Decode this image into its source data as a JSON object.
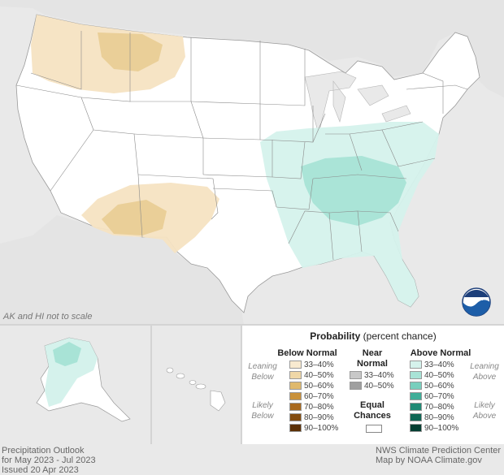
{
  "scale_note": "AK and HI not to scale",
  "legend": {
    "title_bold": "Probability",
    "title_rest": " (percent chance)",
    "below_header": "Below Normal",
    "near_header_1": "Near",
    "near_header_2": "Normal",
    "above_header": "Above Normal",
    "leaning_below_1": "Leaning",
    "leaning_below_2": "Below",
    "likely_below_1": "Likely",
    "likely_below_2": "Below",
    "leaning_above_1": "Leaning",
    "leaning_above_2": "Above",
    "likely_above_1": "Likely",
    "likely_above_2": "Above",
    "equal_1": "Equal",
    "equal_2": "Chances",
    "below": [
      {
        "label": "33–40%",
        "color": "#f8ead0"
      },
      {
        "label": "40–50%",
        "color": "#efd7a7"
      },
      {
        "label": "50–60%",
        "color": "#dfb96c"
      },
      {
        "label": "60–70%",
        "color": "#c9913a"
      },
      {
        "label": "70–80%",
        "color": "#a8691e"
      },
      {
        "label": "80–90%",
        "color": "#834c0f"
      },
      {
        "label": "90–100%",
        "color": "#5b3006"
      }
    ],
    "near": [
      {
        "label": "33–40%",
        "color": "#c8c8c8"
      },
      {
        "label": "40–50%",
        "color": "#9f9f9f"
      }
    ],
    "above": [
      {
        "label": "33–40%",
        "color": "#d5f2ec"
      },
      {
        "label": "40–50%",
        "color": "#a8e3d6"
      },
      {
        "label": "50–60%",
        "color": "#78cfbd"
      },
      {
        "label": "60–70%",
        "color": "#3fae98"
      },
      {
        "label": "70–80%",
        "color": "#208a75"
      },
      {
        "label": "80–90%",
        "color": "#0e6654"
      },
      {
        "label": "90–100%",
        "color": "#053f32"
      }
    ]
  },
  "footer_left": [
    "Precipitation Outlook",
    "for May 2023 - Jul 2023",
    "Issued 20 Apr 2023"
  ],
  "footer_right": [
    "NWS Climate Prediction Center",
    "Map by NOAA Climate.gov"
  ],
  "logo_text": "NOAA",
  "colors": {
    "background": "#e9e9e9",
    "land": "#ffffff",
    "below_leaning": "#f5e3c2",
    "below_likely": "#e9cd96",
    "above_leaning": "#d5f2ec",
    "above_likely": "#a8e3d6"
  }
}
